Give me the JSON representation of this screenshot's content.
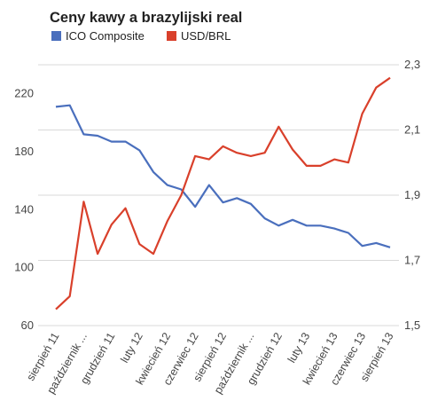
{
  "chart_data": {
    "type": "line",
    "title": "Ceny kawy a brazylijski real",
    "series": [
      {
        "name": "ICO Composite",
        "color": "#4a6fbd",
        "axis": "left",
        "values": [
          211,
          212,
          192,
          191,
          187,
          187,
          181,
          166,
          157,
          154,
          142,
          157,
          145,
          148,
          144,
          134,
          129,
          133,
          129,
          129,
          127,
          124,
          115,
          117,
          114
        ]
      },
      {
        "name": "USD/BRL",
        "color": "#d9402b",
        "axis": "right",
        "values": [
          1.55,
          1.59,
          1.88,
          1.72,
          1.81,
          1.86,
          1.75,
          1.72,
          1.82,
          1.9,
          2.02,
          2.01,
          2.05,
          2.03,
          2.02,
          2.03,
          2.11,
          2.04,
          1.99,
          1.99,
          2.01,
          2.0,
          2.15,
          2.23,
          2.26
        ]
      }
    ],
    "x_tick_labels": [
      "sierpień 11",
      "październik ...",
      "grudzień 11",
      "luty 12",
      "kwiecień 12",
      "czerwiec 12",
      "sierpień 12",
      "październik ...",
      "grudzień 12",
      "luty 13",
      "kwiecień 13",
      "czerwiec 13",
      "sierpień 13"
    ],
    "y_left": {
      "ticks": [
        "60",
        "100",
        "140",
        "180",
        "220"
      ],
      "range": [
        60,
        240
      ]
    },
    "y_right": {
      "ticks": [
        "1,5",
        "1,7",
        "1,9",
        "2,1",
        "2,3"
      ],
      "range": [
        1.5,
        2.3
      ]
    },
    "grid": true,
    "legend_position": "top-left"
  }
}
